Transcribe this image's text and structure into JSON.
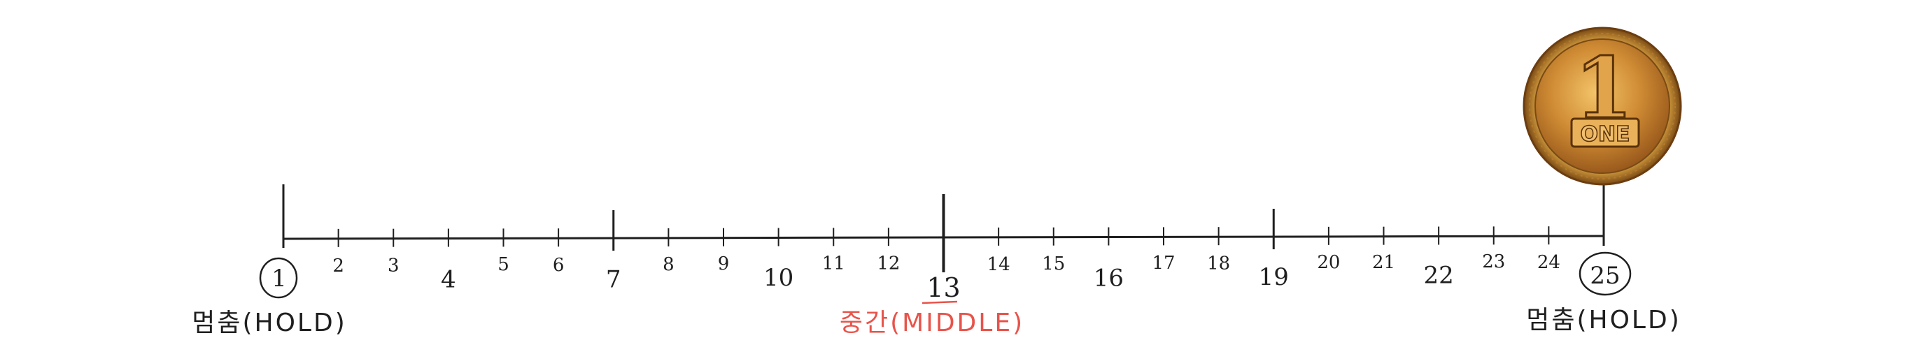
{
  "numberline": {
    "start": 1,
    "end": 25,
    "numbers": [
      "1",
      "2",
      "3",
      "4",
      "5",
      "6",
      "7",
      "8",
      "9",
      "10",
      "11",
      "12",
      "13",
      "14",
      "15",
      "16",
      "17",
      "18",
      "19",
      "20",
      "21",
      "22",
      "23",
      "24",
      "25"
    ],
    "circled": [
      1,
      25
    ],
    "major_ticks": [
      1,
      7,
      13,
      19,
      25
    ]
  },
  "labels": {
    "left": "멈춤(HOLD)",
    "middle": "중간(MIDDLE)",
    "right": "멈춤(HOLD)"
  },
  "coin": {
    "digit": "1",
    "word": "ONE"
  },
  "colors": {
    "line": "#1f1f1f",
    "middle_label": "#e8534a",
    "coin_gold": "#d79a3a",
    "coin_dark": "#8a5218"
  }
}
